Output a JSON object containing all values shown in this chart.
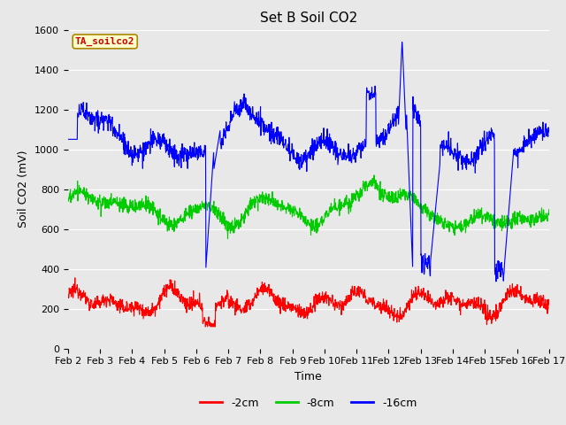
{
  "title": "Set B Soil CO2",
  "xlabel": "Time",
  "ylabel": "Soil CO2 (mV)",
  "ylim": [
    0,
    1600
  ],
  "yticks": [
    0,
    200,
    400,
    600,
    800,
    1000,
    1200,
    1400,
    1600
  ],
  "xtick_labels": [
    "Feb 2",
    "Feb 3",
    "Feb 4",
    "Feb 5",
    "Feb 6",
    "Feb 7",
    "Feb 8",
    "Feb 9",
    "Feb 10",
    "Feb 11",
    "Feb 12",
    "Feb 13",
    "Feb 14",
    "Feb 15",
    "Feb 16",
    "Feb 17"
  ],
  "legend_labels": [
    "-2cm",
    "-8cm",
    "-16cm"
  ],
  "line_colors": [
    "#ff0000",
    "#00cc00",
    "#0000ff"
  ],
  "tag_text": "TA_soilco2",
  "bg_color": "#e8e8e8",
  "fig_color": "#e8e8e8",
  "grid_color": "#ffffff",
  "line_width": 0.8,
  "title_fontsize": 11,
  "axis_label_fontsize": 9,
  "tick_fontsize": 8,
  "tag_fontsize": 8,
  "legend_fontsize": 9
}
